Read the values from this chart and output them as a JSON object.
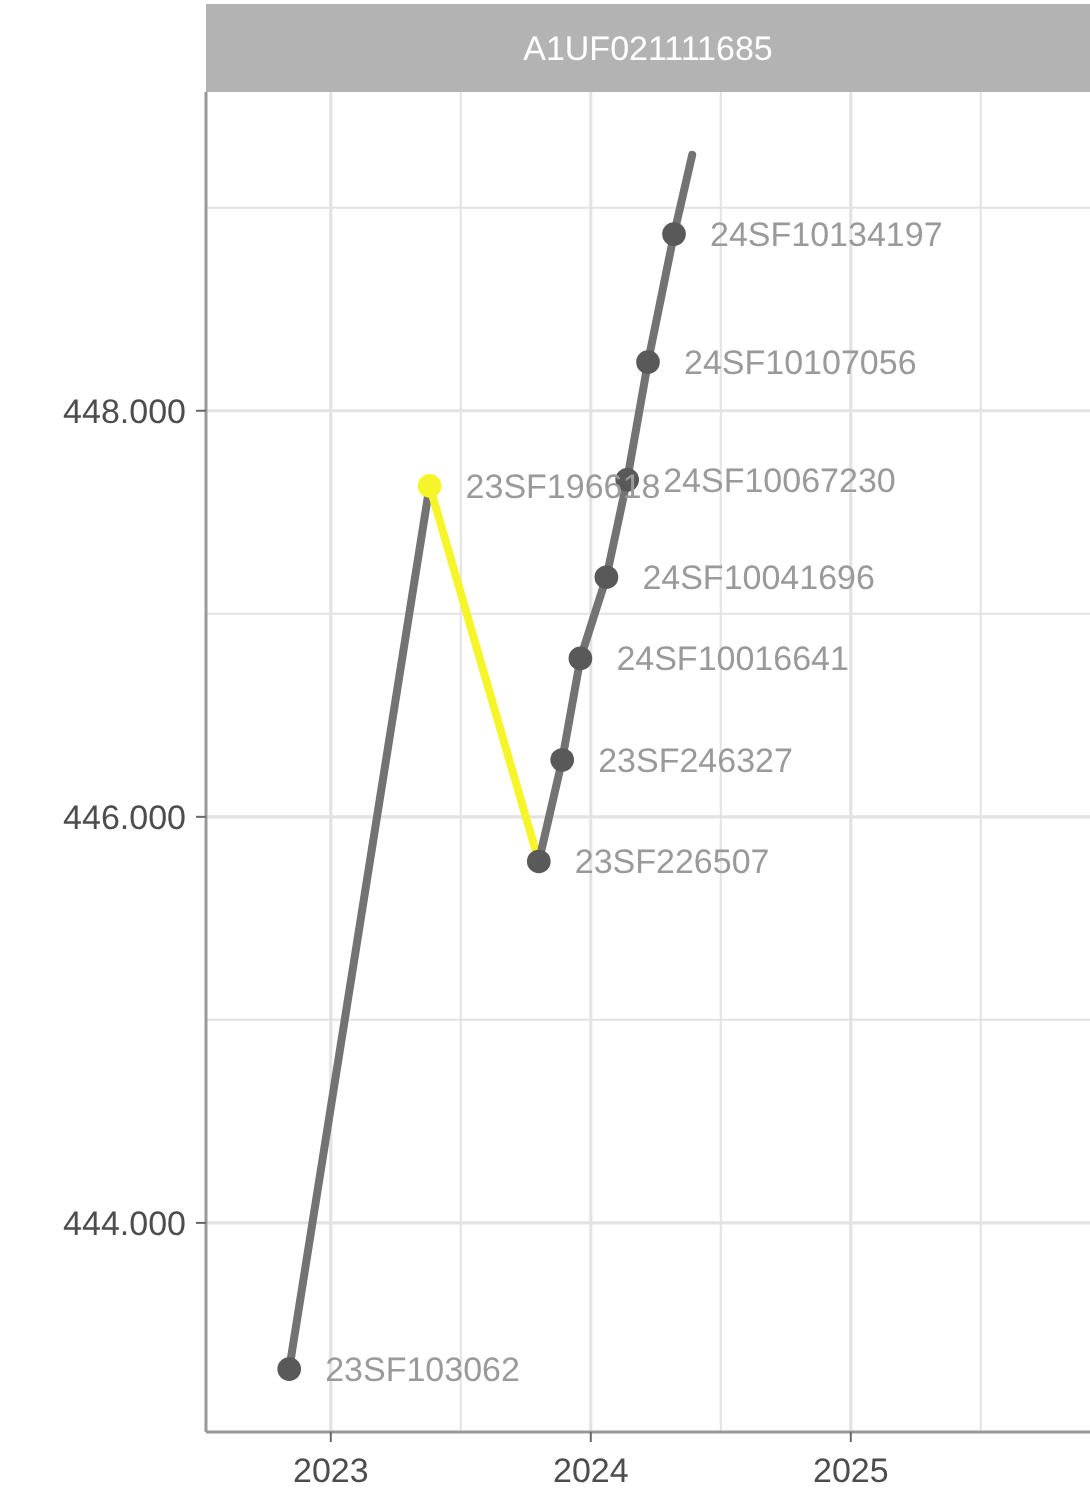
{
  "chart_data": {
    "type": "line",
    "title": "A1UF021111685",
    "xlim": [
      2022.52,
      2025.92
    ],
    "xticks": [
      {
        "value": 2023,
        "label": "2023"
      },
      {
        "value": 2023.5,
        "label": null
      },
      {
        "value": 2024,
        "label": "2024"
      },
      {
        "value": 2024.5,
        "label": null
      },
      {
        "value": 2025,
        "label": "2025"
      },
      {
        "value": 2025.5,
        "label": null
      }
    ],
    "ylim": [
      442.97,
      449.57
    ],
    "yticks": [
      {
        "value": 444,
        "label": "444.000"
      },
      {
        "value": 445,
        "label": null
      },
      {
        "value": 446,
        "label": "446.000"
      },
      {
        "value": 447,
        "label": null
      },
      {
        "value": 448,
        "label": "448.000"
      },
      {
        "value": 449,
        "label": null
      }
    ],
    "grid": true,
    "marker": "circle",
    "line_style": "solid",
    "series": [
      {
        "marker": "none",
        "color": "#737373",
        "x": [
          2022.84,
          2023.38
        ],
        "values": [
          443.28,
          447.63
        ]
      },
      {
        "marker": "none",
        "color": "#f5f52a",
        "x": [
          2023.38,
          2023.8
        ],
        "values": [
          447.63,
          445.78
        ]
      },
      {
        "marker": "none",
        "color": "#737373",
        "x": [
          2023.8,
          2023.89,
          2023.96,
          2024.06,
          2024.14,
          2024.22,
          2024.32,
          2024.39
        ],
        "values": [
          445.78,
          446.28,
          446.78,
          447.18,
          447.66,
          448.24,
          448.87,
          449.26
        ]
      },
      {
        "type": "scatter",
        "x": [
          2022.84,
          2023.38,
          2023.8,
          2023.89,
          2023.96,
          2024.06,
          2024.14,
          2024.22,
          2024.32
        ],
        "values": [
          443.28,
          447.63,
          445.78,
          446.28,
          446.78,
          447.18,
          447.66,
          448.24,
          448.87
        ],
        "colors": [
          "#595959",
          "#f5f52a",
          "#595959",
          "#595959",
          "#595959",
          "#595959",
          "#595959",
          "#595959",
          "#595959"
        ]
      }
    ],
    "annotations": [
      {
        "text": "23SF103062",
        "x": 2022.84,
        "y": 443.28
      },
      {
        "text": "23SF196618",
        "x": 2023.38,
        "y": 447.63
      },
      {
        "text": "23SF226507",
        "x": 2023.8,
        "y": 445.78
      },
      {
        "text": "23SF246327",
        "x": 2023.89,
        "y": 446.28
      },
      {
        "text": "24SF10016641",
        "x": 2023.96,
        "y": 446.78
      },
      {
        "text": "24SF10041696",
        "x": 2024.06,
        "y": 447.18
      },
      {
        "text": "24SF10067230",
        "x": 2024.14,
        "y": 447.66
      },
      {
        "text": "24SF10107056",
        "x": 2024.22,
        "y": 448.24
      },
      {
        "text": "24SF10134197",
        "x": 2024.32,
        "y": 448.87
      }
    ]
  }
}
